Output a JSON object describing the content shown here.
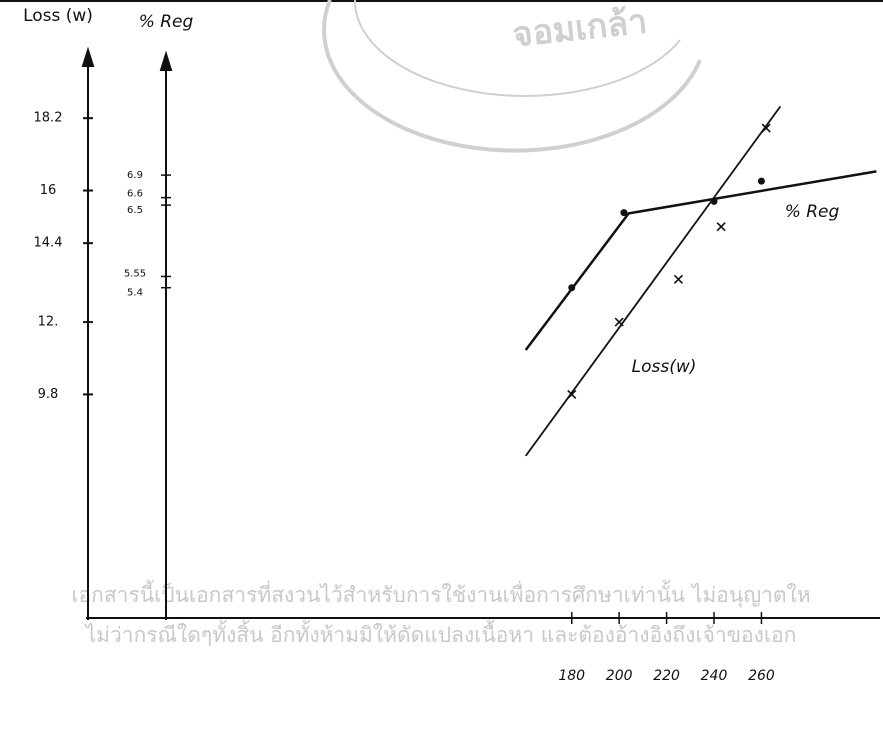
{
  "chart_data": {
    "type": "line",
    "ylabel": "Loss (w)",
    "y2label": "% Reg",
    "xlim": [
      -24,
      310
    ],
    "xticks": [
      180,
      200,
      220,
      240,
      260
    ],
    "ylim": [
      3,
      20
    ],
    "yticks": [
      {
        "value": 9.8,
        "label": "9.8"
      },
      {
        "value": 12,
        "label": "12."
      },
      14.4,
      16,
      18.2
    ],
    "y2lim": [
      1,
      8.5
    ],
    "y2ticks": [
      5.4,
      5.55,
      6.5,
      6.6,
      6.9
    ],
    "series": [
      {
        "name": "Loss(w)",
        "color": "#111111",
        "marker": "cross",
        "x": [
          180,
          200,
          225,
          243,
          262
        ],
        "values": [
          9.8,
          12,
          13.3,
          14.9,
          17.9
        ],
        "fit": {
          "x": [
            160.6,
            268
          ],
          "values": [
            7.93,
            18.56
          ]
        }
      },
      {
        "name": "% Reg",
        "color": "#111111",
        "marker": "dot",
        "axis": "y2",
        "x": [
          180,
          202,
          240,
          260
        ],
        "values": [
          5.4,
          6.4,
          6.55,
          6.82
        ],
        "fit": {
          "x": [
            160.6,
            204,
            308.5
          ],
          "values": [
            4.57,
            6.39,
            6.95
          ]
        }
      }
    ]
  },
  "watermark": {
    "seal": "จอมเกล้า",
    "lines": [
      "เอกสารนี้เป็นเอกสารที่สงวนไว้สำหรับการใช้งานเพื่อการศึกษาเท่านั้น ไม่อนุญาตให",
      "ไม่ว่ากรณีใดๆทั้งสิ้น อีกทั้งห้ามมิให้ดัดแปลงเนื้อหา และต้องอ้างอิงถึงเจ้าของเอก"
    ]
  }
}
